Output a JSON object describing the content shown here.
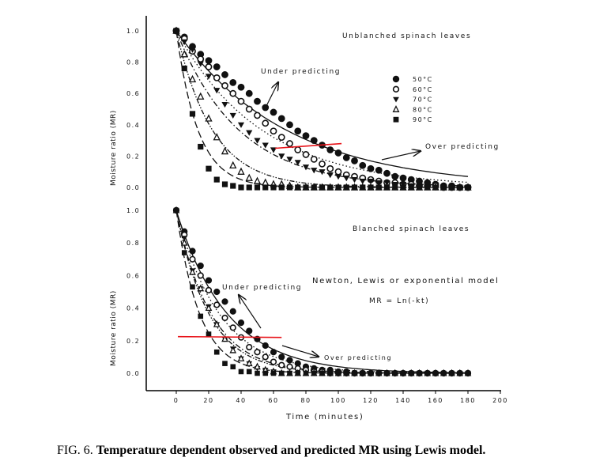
{
  "caption": {
    "label": "FIG. 6.",
    "text": "Temperature dependent observed and predicted MR using Lewis model."
  },
  "chart_data": [
    {
      "type": "scatter",
      "panel": "top",
      "title": "Unblanched spinach leaves",
      "xlabel": "",
      "ylabel": "Moisture ratio (MR)",
      "xlim": [
        0,
        200
      ],
      "ylim": [
        0,
        1.0
      ],
      "yticks": [
        "0.0",
        "0.2",
        "0.4",
        "0.6",
        "0.8",
        "1.0"
      ],
      "x_step_minutes": 5,
      "annotations": {
        "under": "Under predicting",
        "over": "Over predicting"
      },
      "red_line": [
        [
          61,
          0.25
        ],
        [
          102,
          0.28
        ]
      ],
      "series": [
        {
          "name": "50°C",
          "marker": "filled-circle",
          "model_k": 0.0148,
          "line": "solid",
          "values": [
            1,
            0.96,
            0.9,
            0.85,
            0.81,
            0.77,
            0.72,
            0.67,
            0.64,
            0.6,
            0.55,
            0.51,
            0.48,
            0.44,
            0.4,
            0.36,
            0.33,
            0.3,
            0.27,
            0.24,
            0.22,
            0.19,
            0.17,
            0.14,
            0.12,
            0.11,
            0.09,
            0.07,
            0.06,
            0.05,
            0.04,
            0.03,
            0.02,
            0.01,
            0.01,
            0,
            0
          ]
        },
        {
          "name": "60°C",
          "marker": "open-circle",
          "model_k": 0.019,
          "line": "dotted",
          "values": [
            1,
            0.95,
            0.87,
            0.82,
            0.77,
            0.7,
            0.65,
            0.6,
            0.55,
            0.5,
            0.46,
            0.41,
            0.36,
            0.32,
            0.28,
            0.24,
            0.21,
            0.18,
            0.15,
            0.12,
            0.1,
            0.08,
            0.07,
            0.06,
            0.05,
            0.04,
            0.03,
            0.03,
            0.02,
            0.02,
            0.01,
            0.01,
            0.01,
            0,
            0,
            0,
            0
          ]
        },
        {
          "name": "70°C",
          "marker": "filled-triangle-down",
          "model_k": 0.026,
          "line": "dashdot",
          "values": [
            1,
            0.93,
            0.88,
            0.79,
            0.71,
            0.62,
            0.53,
            0.46,
            0.4,
            0.35,
            0.3,
            0.27,
            0.24,
            0.2,
            0.18,
            0.16,
            0.13,
            0.11,
            0.1,
            0.08,
            0.07,
            0.06,
            0.05,
            0.04,
            0.04,
            0.03,
            0.03,
            0.02,
            0.02,
            0.01,
            0.01,
            0.01,
            0,
            0,
            0,
            0,
            0
          ]
        },
        {
          "name": "80°C",
          "marker": "open-triangle-up",
          "model_k": 0.045,
          "line": "dashdotdot",
          "values": [
            1,
            0.85,
            0.69,
            0.58,
            0.44,
            0.32,
            0.23,
            0.14,
            0.1,
            0.06,
            0.04,
            0.03,
            0.02,
            0.02,
            0.01,
            0,
            0,
            0,
            0,
            0,
            0,
            0,
            0,
            0,
            0,
            0,
            0,
            0,
            0,
            0,
            0,
            0,
            0,
            0,
            0,
            0,
            0
          ]
        },
        {
          "name": "90°C",
          "marker": "filled-square",
          "model_k": 0.075,
          "line": "longdash",
          "values": [
            1,
            0.76,
            0.47,
            0.26,
            0.12,
            0.05,
            0.02,
            0.01,
            0,
            0,
            0,
            0,
            0,
            0,
            0,
            0,
            0,
            0,
            0,
            0,
            0,
            0,
            0,
            0,
            0,
            0,
            0,
            0,
            0,
            0,
            0,
            0,
            0,
            0,
            0,
            0,
            0
          ]
        }
      ]
    },
    {
      "type": "scatter",
      "panel": "bottom",
      "title": "Blanched spinach leaves",
      "xlabel": "Time (minutes)",
      "ylabel": "Moisture ratio (MR)",
      "xlim": [
        0,
        200
      ],
      "ylim": [
        0,
        1.0
      ],
      "xticks": [
        "0",
        "20",
        "40",
        "60",
        "80",
        "100",
        "120",
        "140",
        "160",
        "180",
        "200"
      ],
      "yticks": [
        "0.0",
        "0.2",
        "0.4",
        "0.6",
        "0.8",
        "1.0"
      ],
      "x_step_minutes": 5,
      "annotations": {
        "under": "Under predicting",
        "over": "Over predicting",
        "model": "Newton, Lewis or exponential model",
        "equation": "MR = Ln(-kt)"
      },
      "red_line": [
        [
          1,
          0.225
        ],
        [
          65,
          0.22
        ]
      ],
      "series": [
        {
          "name": "50°C",
          "marker": "filled-circle",
          "model_k": 0.032,
          "line": "solid",
          "values": [
            1,
            0.87,
            0.75,
            0.66,
            0.57,
            0.5,
            0.44,
            0.38,
            0.31,
            0.26,
            0.21,
            0.17,
            0.13,
            0.1,
            0.08,
            0.06,
            0.04,
            0.03,
            0.02,
            0.02,
            0.01,
            0.01,
            0,
            0,
            0,
            0,
            0,
            0,
            0,
            0,
            0,
            0,
            0,
            0,
            0,
            0,
            0
          ]
        },
        {
          "name": "60°C",
          "marker": "open-circle",
          "model_k": 0.038,
          "line": "dotted",
          "values": [
            1,
            0.85,
            0.7,
            0.6,
            0.51,
            0.42,
            0.34,
            0.28,
            0.22,
            0.16,
            0.13,
            0.1,
            0.07,
            0.05,
            0.04,
            0.03,
            0.02,
            0.01,
            0.01,
            0,
            0,
            0,
            0,
            0,
            0,
            0,
            0,
            0,
            0,
            0,
            0,
            0,
            0,
            0,
            0,
            0,
            0
          ]
        },
        {
          "name": "70°C",
          "marker": "filled-triangle-down",
          "model_k": 0.047,
          "line": "dashdot",
          "values": [
            1,
            0.83,
            0.63,
            0.52,
            0.41,
            0.3,
            0.21,
            0.15,
            0.09,
            0.06,
            0.03,
            0.02,
            0.01,
            0,
            0,
            0,
            0,
            0,
            0,
            0,
            0,
            0,
            0,
            0,
            0,
            0,
            0,
            0,
            0,
            0,
            0,
            0,
            0,
            0,
            0,
            0,
            0
          ]
        },
        {
          "name": "80°C",
          "marker": "open-triangle-up",
          "model_k": 0.05,
          "line": "dashdotdot",
          "values": [
            1,
            0.8,
            0.62,
            0.52,
            0.4,
            0.3,
            0.21,
            0.14,
            0.09,
            0.06,
            0.04,
            0.02,
            0.01,
            0,
            0,
            0,
            0,
            0,
            0,
            0,
            0,
            0,
            0,
            0,
            0,
            0,
            0,
            0,
            0,
            0,
            0,
            0,
            0,
            0,
            0,
            0,
            0
          ]
        },
        {
          "name": "90°C",
          "marker": "filled-square",
          "model_k": 0.07,
          "line": "longdash",
          "values": [
            1,
            0.74,
            0.53,
            0.35,
            0.24,
            0.13,
            0.06,
            0.04,
            0.01,
            0.01,
            0,
            0,
            0,
            0,
            0,
            0,
            0,
            0,
            0,
            0,
            0,
            0,
            0,
            0,
            0,
            0,
            0,
            0,
            0,
            0,
            0,
            0,
            0,
            0,
            0,
            0,
            0
          ]
        }
      ]
    }
  ]
}
